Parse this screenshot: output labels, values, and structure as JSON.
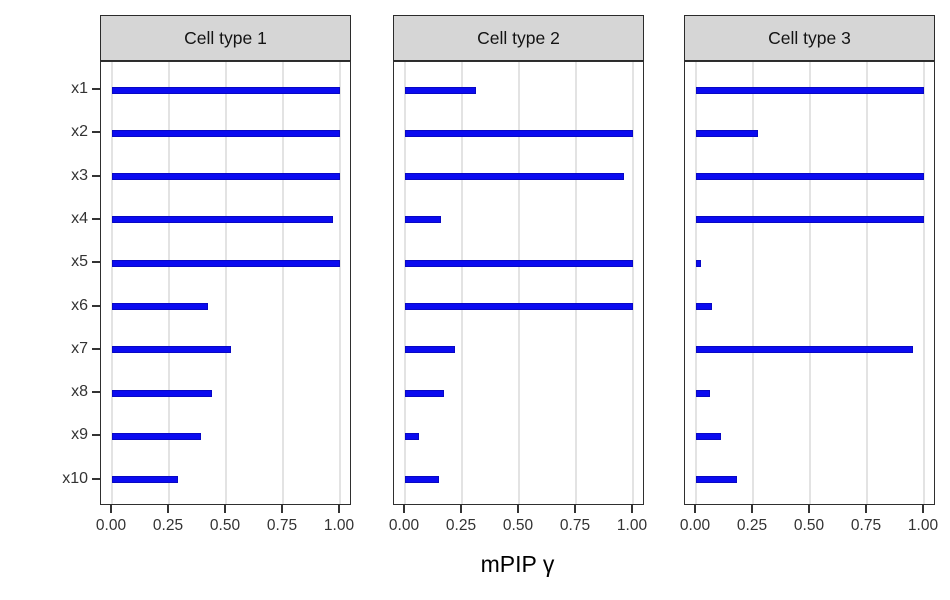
{
  "chart_data": {
    "type": "bar",
    "orientation": "horizontal",
    "title": "",
    "xlabel": "mPIP γ",
    "ylabel": "",
    "categories": [
      "x1",
      "x2",
      "x3",
      "x4",
      "x5",
      "x6",
      "x7",
      "x8",
      "x9",
      "x10"
    ],
    "series": [
      {
        "name": "Cell type 1",
        "values": [
          1.0,
          1.0,
          1.0,
          0.97,
          1.0,
          0.42,
          0.52,
          0.44,
          0.39,
          0.29
        ]
      },
      {
        "name": "Cell type 2",
        "values": [
          0.31,
          1.0,
          0.96,
          0.16,
          1.0,
          1.0,
          0.22,
          0.17,
          0.06,
          0.15
        ]
      },
      {
        "name": "Cell type 3",
        "values": [
          1.0,
          0.27,
          1.0,
          1.0,
          0.02,
          0.07,
          0.95,
          0.06,
          0.11,
          0.18
        ]
      }
    ],
    "facet_layout": "columns",
    "xlim": [
      0,
      1
    ],
    "x_ticks": [
      {
        "value": 0.0,
        "label": "0.00"
      },
      {
        "value": 0.25,
        "label": "0.25"
      },
      {
        "value": 0.5,
        "label": "0.50"
      },
      {
        "value": 0.75,
        "label": "0.75"
      },
      {
        "value": 1.0,
        "label": "1.00"
      }
    ],
    "grid": "major-vertical",
    "legend_position": "none",
    "colors": {
      "bar_fill": "#0b0bf0",
      "bar_border": "#0808c4",
      "strip_background": "#d6d6d6",
      "gridline": "#e3e3e3",
      "panel_border": "#2f2f2f",
      "axis_text": "#333333"
    }
  }
}
